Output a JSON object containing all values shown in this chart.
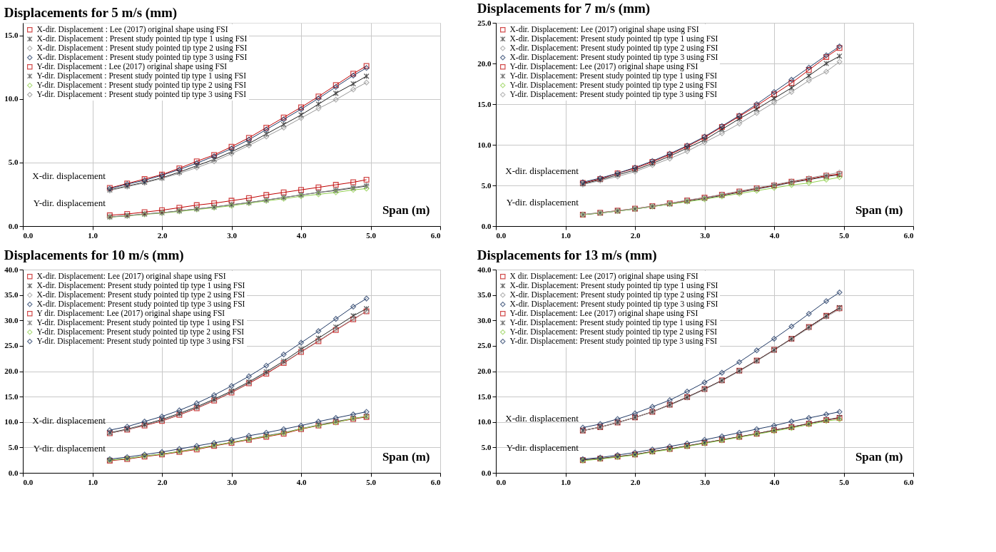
{
  "chart_data": [
    {
      "type": "line",
      "title": "Displacements for 5 m/s (mm)",
      "xlabel": "Span (m)",
      "x": [
        1.25,
        1.5,
        1.75,
        2.0,
        2.25,
        2.5,
        2.75,
        3.0,
        3.25,
        3.5,
        3.75,
        4.0,
        4.25,
        4.5,
        4.75,
        4.94
      ],
      "xlim": [
        0,
        6
      ],
      "xticks": [
        {
          "value": 0,
          "label": "0.0"
        },
        {
          "value": 1,
          "label": "1.0"
        },
        {
          "value": 2,
          "label": "2.0"
        },
        {
          "value": 3,
          "label": "3.0"
        },
        {
          "value": 4,
          "label": "4.0"
        },
        {
          "value": 5,
          "label": "5.0"
        },
        {
          "value": 6,
          "label": "6.0"
        }
      ],
      "ylim": [
        0,
        16
      ],
      "yticks": [
        {
          "value": 0,
          "label": "0.0"
        },
        {
          "value": 5,
          "label": "5.0"
        },
        {
          "value": 10,
          "label": "10.0"
        },
        {
          "value": 15,
          "label": "15.0"
        }
      ],
      "grid": true,
      "legend": "top left",
      "line_style": "solid",
      "annotations": [
        "X-dir. displacement",
        "Y-dir. displacement"
      ],
      "series": [
        {
          "name": "X-dir. Displacement : Lee (2017) original shape using FSI",
          "color": "#c00000",
          "marker": "square",
          "values": [
            3.0,
            3.35,
            3.7,
            4.05,
            4.55,
            5.1,
            5.6,
            6.25,
            6.95,
            7.75,
            8.55,
            9.35,
            10.2,
            11.1,
            12.0,
            12.6
          ]
        },
        {
          "name": "X-dir. Displacement : Present study pointed tip type 1 using FSI",
          "color": "#222222",
          "marker": "cross",
          "values": [
            2.85,
            3.15,
            3.45,
            3.8,
            4.25,
            4.75,
            5.25,
            5.85,
            6.5,
            7.25,
            8.0,
            8.75,
            9.6,
            10.45,
            11.2,
            11.8
          ]
        },
        {
          "name": "X-dir. Displacement : Present study pointed tip type 2 using FSI",
          "color": "#999999",
          "marker": "diamond",
          "values": [
            2.8,
            3.1,
            3.4,
            3.75,
            4.15,
            4.6,
            5.1,
            5.7,
            6.35,
            7.05,
            7.75,
            8.5,
            9.25,
            9.95,
            10.75,
            11.3
          ]
        },
        {
          "name": "X-dir. Displacement : Present study pointed tip type 3 using FSI",
          "color": "#1f3864",
          "marker": "diamond",
          "values": [
            2.95,
            3.3,
            3.6,
            4.0,
            4.45,
            4.95,
            5.5,
            6.1,
            6.8,
            7.6,
            8.4,
            9.2,
            10.05,
            10.95,
            11.85,
            12.45
          ]
        },
        {
          "name": "Y-dir. Displacement : Lee (2017) original shape using FSI",
          "color": "#c00000",
          "marker": "square",
          "values": [
            0.85,
            0.95,
            1.1,
            1.25,
            1.45,
            1.65,
            1.8,
            2.0,
            2.2,
            2.45,
            2.65,
            2.85,
            3.05,
            3.25,
            3.45,
            3.65
          ]
        },
        {
          "name": "Y-dir. Displacement : Present study pointed tip type 1 using FSI",
          "color": "#333333",
          "marker": "cross",
          "values": [
            0.72,
            0.82,
            0.95,
            1.05,
            1.2,
            1.35,
            1.5,
            1.68,
            1.85,
            2.05,
            2.25,
            2.45,
            2.65,
            2.8,
            3.0,
            3.15
          ]
        },
        {
          "name": "Y-dir. Displacement : Present study pointed tip type 2 using FSI",
          "color": "#92d050",
          "marker": "diamond",
          "values": [
            0.7,
            0.8,
            0.92,
            1.02,
            1.15,
            1.3,
            1.45,
            1.6,
            1.8,
            1.98,
            2.15,
            2.35,
            2.5,
            2.65,
            2.85,
            2.95
          ]
        },
        {
          "name": "Y-dir. Displacement : Present study pointed tip type 3 using FSI",
          "color": "#8a8a8a",
          "marker": "diamond",
          "values": [
            0.72,
            0.82,
            0.95,
            1.05,
            1.2,
            1.35,
            1.5,
            1.68,
            1.85,
            2.05,
            2.25,
            2.45,
            2.65,
            2.85,
            3.05,
            3.2
          ]
        }
      ]
    },
    {
      "type": "line",
      "title": "Displacements for 7 m/s (mm)",
      "xlabel": "Span (m)",
      "x": [
        1.25,
        1.5,
        1.75,
        2.0,
        2.25,
        2.5,
        2.75,
        3.0,
        3.25,
        3.5,
        3.75,
        4.0,
        4.25,
        4.5,
        4.75,
        4.94
      ],
      "xlim": [
        0,
        6
      ],
      "xticks": [
        {
          "value": 0,
          "label": "0.0"
        },
        {
          "value": 1,
          "label": "1.0"
        },
        {
          "value": 2,
          "label": "2.0"
        },
        {
          "value": 3,
          "label": "3.0"
        },
        {
          "value": 4,
          "label": "4.0"
        },
        {
          "value": 5,
          "label": "5.0"
        },
        {
          "value": 6,
          "label": "6.0"
        }
      ],
      "ylim": [
        0,
        25
      ],
      "yticks": [
        {
          "value": 0,
          "label": "0.0"
        },
        {
          "value": 5,
          "label": "5.0"
        },
        {
          "value": 10,
          "label": "10.0"
        },
        {
          "value": 15,
          "label": "15.0"
        },
        {
          "value": 20,
          "label": "20.0"
        },
        {
          "value": 25,
          "label": "25.0"
        }
      ],
      "grid": true,
      "legend": "top left",
      "line_style": "solid",
      "annotations": [
        "X-dir. displacement",
        "Y-dir. displacement"
      ],
      "series": [
        {
          "name": "X-dir. Displacement: Lee (2017) original shape using FSI",
          "color": "#c00000",
          "marker": "square",
          "values": [
            5.3,
            5.8,
            6.5,
            7.1,
            7.9,
            8.8,
            9.8,
            10.9,
            12.2,
            13.5,
            14.8,
            16.2,
            17.6,
            19.2,
            20.8,
            21.9
          ]
        },
        {
          "name": "X-dir. Displacement: Present study pointed tip type 1 using FSI",
          "color": "#222222",
          "marker": "cross",
          "values": [
            5.2,
            5.7,
            6.3,
            6.9,
            7.7,
            8.6,
            9.6,
            10.6,
            11.9,
            13.2,
            14.4,
            15.7,
            17.0,
            18.5,
            20.0,
            20.9
          ]
        },
        {
          "name": "X-dir. Displacement: Present study pointed tip type 2 using FSI",
          "color": "#999999",
          "marker": "diamond",
          "values": [
            5.1,
            5.6,
            6.1,
            6.7,
            7.5,
            8.3,
            9.2,
            10.3,
            11.4,
            12.6,
            13.9,
            15.2,
            16.5,
            17.9,
            19.0,
            20.2
          ]
        },
        {
          "name": "X-dir. Displacement: Present study pointed tip type 3 using FSI",
          "color": "#1f3864",
          "marker": "diamond",
          "values": [
            5.4,
            5.9,
            6.5,
            7.2,
            8.0,
            8.9,
            9.9,
            11.0,
            12.3,
            13.6,
            15.0,
            16.5,
            18.0,
            19.5,
            21.0,
            22.1
          ]
        },
        {
          "name": "Y-dir. Displacement: Lee (2017) original shape using FSI",
          "color": "#c00000",
          "marker": "square",
          "values": [
            1.4,
            1.65,
            1.9,
            2.15,
            2.45,
            2.8,
            3.15,
            3.5,
            3.85,
            4.25,
            4.65,
            5.0,
            5.45,
            5.8,
            6.2,
            6.4
          ]
        },
        {
          "name": "Y-dir. Displacement: Present study pointed tip type 1 using FSI",
          "color": "#333333",
          "marker": "cross",
          "values": [
            1.4,
            1.6,
            1.85,
            2.1,
            2.4,
            2.7,
            3.05,
            3.4,
            3.75,
            4.15,
            4.55,
            4.95,
            5.35,
            5.7,
            6.1,
            6.3
          ]
        },
        {
          "name": "Y-dir. Displacement: Present study pointed tip type 2 using FSI",
          "color": "#92d050",
          "marker": "diamond",
          "values": [
            1.4,
            1.6,
            1.85,
            2.1,
            2.4,
            2.7,
            3.0,
            3.3,
            3.65,
            4.0,
            4.35,
            4.7,
            5.05,
            5.3,
            5.7,
            6.0
          ]
        },
        {
          "name": "Y-dir. Displacement: Present study pointed tip type 3 using FSI",
          "color": "#a0a0a0",
          "marker": "diamond",
          "values": [
            1.45,
            1.65,
            1.9,
            2.15,
            2.45,
            2.8,
            3.2,
            3.5,
            3.9,
            4.3,
            4.7,
            5.1,
            5.5,
            5.9,
            6.3,
            6.6
          ]
        }
      ]
    },
    {
      "type": "line",
      "title": "Displacements for 10 m/s (mm)",
      "xlabel": "Span (m)",
      "x": [
        1.25,
        1.5,
        1.75,
        2.0,
        2.25,
        2.5,
        2.75,
        3.0,
        3.25,
        3.5,
        3.75,
        4.0,
        4.25,
        4.5,
        4.75,
        4.94
      ],
      "xlim": [
        0,
        6
      ],
      "xticks": [
        {
          "value": 0,
          "label": "0.0"
        },
        {
          "value": 1,
          "label": "1.0"
        },
        {
          "value": 2,
          "label": "2.0"
        },
        {
          "value": 3,
          "label": "3.0"
        },
        {
          "value": 4,
          "label": "4.0"
        },
        {
          "value": 5,
          "label": "5.0"
        },
        {
          "value": 6,
          "label": "6.0"
        }
      ],
      "ylim": [
        0,
        40
      ],
      "yticks": [
        {
          "value": 0,
          "label": "0.0"
        },
        {
          "value": 5,
          "label": "5.0"
        },
        {
          "value": 10,
          "label": "10.0"
        },
        {
          "value": 15,
          "label": "15.0"
        },
        {
          "value": 20,
          "label": "20.0"
        },
        {
          "value": 25,
          "label": "25.0"
        },
        {
          "value": 30,
          "label": "30.0"
        },
        {
          "value": 35,
          "label": "35.0"
        },
        {
          "value": 40,
          "label": "40.0"
        }
      ],
      "grid": true,
      "legend": "top left",
      "line_style": "solid",
      "annotations": [
        "X-dir. displacement",
        "Y-dir. displacement"
      ],
      "series": [
        {
          "name": "X-dir. Displacement: Lee (2017) original shape using FSI",
          "color": "#c00000",
          "marker": "square",
          "values": [
            7.8,
            8.5,
            9.3,
            10.2,
            11.4,
            12.7,
            14.2,
            15.8,
            17.6,
            19.5,
            21.6,
            23.8,
            25.9,
            28.1,
            30.2,
            31.8
          ]
        },
        {
          "name": "X-dir. Displacement: Present study pointed tip type 1 using FSI",
          "color": "#222222",
          "marker": "cross",
          "values": [
            7.9,
            8.6,
            9.5,
            10.5,
            11.7,
            13.0,
            14.5,
            16.1,
            17.9,
            19.9,
            22.0,
            24.3,
            26.5,
            28.7,
            30.9,
            32.3
          ]
        },
        {
          "name": "X-dir. Displacement: Present study pointed tip type 2 using FSI",
          "color": "#999999",
          "marker": "diamond",
          "values": [
            7.8,
            8.5,
            9.4,
            10.3,
            11.5,
            12.8,
            14.3,
            15.9,
            17.7,
            19.7,
            21.7,
            23.9,
            26.0,
            28.2,
            30.3,
            31.8
          ]
        },
        {
          "name": "X-dir. Displacement: Present study pointed tip type 3 using FSI",
          "color": "#1f3864",
          "marker": "diamond",
          "values": [
            8.4,
            9.1,
            10.1,
            11.1,
            12.3,
            13.7,
            15.3,
            17.1,
            19.0,
            21.1,
            23.3,
            25.6,
            27.9,
            30.3,
            32.7,
            34.3
          ]
        },
        {
          "name": "Y dir. Displacement: Lee (2017) original shape using FSI",
          "color": "#c00000",
          "marker": "square",
          "values": [
            2.4,
            2.7,
            3.2,
            3.6,
            4.1,
            4.6,
            5.3,
            5.9,
            6.5,
            7.1,
            7.7,
            8.6,
            9.3,
            10.0,
            10.6,
            11.0
          ]
        },
        {
          "name": "Y-dir. Displacement: Present study pointed tip type 1 using FSI",
          "color": "#555555",
          "marker": "cross",
          "values": [
            2.5,
            2.8,
            3.3,
            3.7,
            4.2,
            4.8,
            5.4,
            6.0,
            6.6,
            7.3,
            7.9,
            8.7,
            9.4,
            10.1,
            10.7,
            11.1
          ]
        },
        {
          "name": "Y-dir. Displacement: Present study pointed tip type 2 using FSI",
          "color": "#92d050",
          "marker": "diamond",
          "values": [
            2.5,
            2.8,
            3.3,
            3.7,
            4.2,
            4.7,
            5.4,
            6.0,
            6.6,
            7.2,
            7.8,
            8.7,
            9.3,
            9.9,
            10.7,
            11.1
          ]
        },
        {
          "name": "Y-dir. Displacement: Present study pointed tip type 3 using FSI",
          "color": "#1f3864",
          "marker": "diamond",
          "values": [
            2.7,
            3.1,
            3.6,
            4.1,
            4.7,
            5.3,
            5.9,
            6.5,
            7.3,
            7.9,
            8.6,
            9.3,
            10.1,
            10.8,
            11.5,
            12.0
          ]
        }
      ]
    },
    {
      "type": "line",
      "title": "Displacements for 13 m/s (mm)",
      "xlabel": "Span (m)",
      "x": [
        1.25,
        1.5,
        1.75,
        2.0,
        2.25,
        2.5,
        2.75,
        3.0,
        3.25,
        3.5,
        3.75,
        4.0,
        4.25,
        4.5,
        4.75,
        4.94
      ],
      "xlim": [
        0,
        6
      ],
      "xticks": [
        {
          "value": 0,
          "label": "0.0"
        },
        {
          "value": 1,
          "label": "1.0"
        },
        {
          "value": 2,
          "label": "2.0"
        },
        {
          "value": 3,
          "label": "3.0"
        },
        {
          "value": 4,
          "label": "4.0"
        },
        {
          "value": 5,
          "label": "5.0"
        },
        {
          "value": 6,
          "label": "6.0"
        }
      ],
      "ylim": [
        0,
        40
      ],
      "yticks": [
        {
          "value": 0,
          "label": "0.0"
        },
        {
          "value": 5,
          "label": "5.0"
        },
        {
          "value": 10,
          "label": "10.0"
        },
        {
          "value": 15,
          "label": "15.0"
        },
        {
          "value": 20,
          "label": "20.0"
        },
        {
          "value": 25,
          "label": "25.0"
        },
        {
          "value": 30,
          "label": "30.0"
        },
        {
          "value": 35,
          "label": "35.0"
        },
        {
          "value": 40,
          "label": "40.0"
        }
      ],
      "grid": true,
      "legend": "top left",
      "line_style": "solid",
      "annotations": [
        "X-dir. displacement",
        "Y-dir. displacement"
      ],
      "series": [
        {
          "name": "X dir. Displacement: Lee (2017) original shape using FSI",
          "color": "#c00000",
          "marker": "square",
          "values": [
            8.3,
            9.0,
            9.9,
            10.9,
            12.0,
            13.4,
            14.9,
            16.5,
            18.2,
            20.1,
            22.1,
            24.2,
            26.4,
            28.7,
            30.9,
            32.4
          ]
        },
        {
          "name": "X-dir. Displacement: Present study pointed tip type 1 using FSI",
          "color": "#222222",
          "marker": "cross",
          "values": [
            8.3,
            9.0,
            9.9,
            10.9,
            12.0,
            13.4,
            14.9,
            16.5,
            18.2,
            20.1,
            22.1,
            24.2,
            26.4,
            28.7,
            30.9,
            32.5
          ]
        },
        {
          "name": "X-dir. Displacement: Present study pointed tip type 2 using FSI",
          "color": "#999999",
          "marker": "diamond",
          "values": [
            8.3,
            9.0,
            9.9,
            10.9,
            12.0,
            13.3,
            14.8,
            16.4,
            18.1,
            20.0,
            22.0,
            24.1,
            26.3,
            28.5,
            30.7,
            32.2
          ]
        },
        {
          "name": "X-dir. Displacement: Present study pointed tip type 3 using FSI",
          "color": "#1f3864",
          "marker": "diamond",
          "values": [
            8.9,
            9.6,
            10.6,
            11.7,
            13.0,
            14.3,
            16.0,
            17.8,
            19.7,
            21.8,
            24.1,
            26.4,
            28.8,
            31.3,
            33.8,
            35.5
          ]
        },
        {
          "name": "Y-dir. Displacement: Lee (2017) original shape using FSI",
          "color": "#c00000",
          "marker": "square",
          "values": [
            2.5,
            2.8,
            3.2,
            3.6,
            4.2,
            4.7,
            5.3,
            5.9,
            6.5,
            7.1,
            7.7,
            8.4,
            9.0,
            9.7,
            10.4,
            10.8
          ]
        },
        {
          "name": "Y-dir. Displacement: Present study pointed tip type 1 using FSI",
          "color": "#333333",
          "marker": "cross",
          "values": [
            2.5,
            2.8,
            3.2,
            3.6,
            4.2,
            4.7,
            5.3,
            5.9,
            6.5,
            7.1,
            7.7,
            8.4,
            9.0,
            9.7,
            10.4,
            10.9
          ]
        },
        {
          "name": "Y-dir. Displacement: Present study pointed tip type 2 using FSI",
          "color": "#92d050",
          "marker": "diamond",
          "values": [
            2.4,
            2.7,
            3.1,
            3.5,
            4.1,
            4.6,
            5.2,
            5.8,
            6.4,
            7.0,
            7.6,
            8.2,
            8.8,
            9.5,
            10.2,
            10.5
          ]
        },
        {
          "name": "Y-dir. Displacement: Present study pointed tip type 3 using FSI",
          "color": "#1f3864",
          "marker": "diamond",
          "values": [
            2.7,
            3.0,
            3.5,
            4.0,
            4.6,
            5.2,
            5.8,
            6.5,
            7.2,
            7.9,
            8.6,
            9.3,
            10.1,
            10.8,
            11.5,
            12.0
          ]
        }
      ]
    }
  ]
}
